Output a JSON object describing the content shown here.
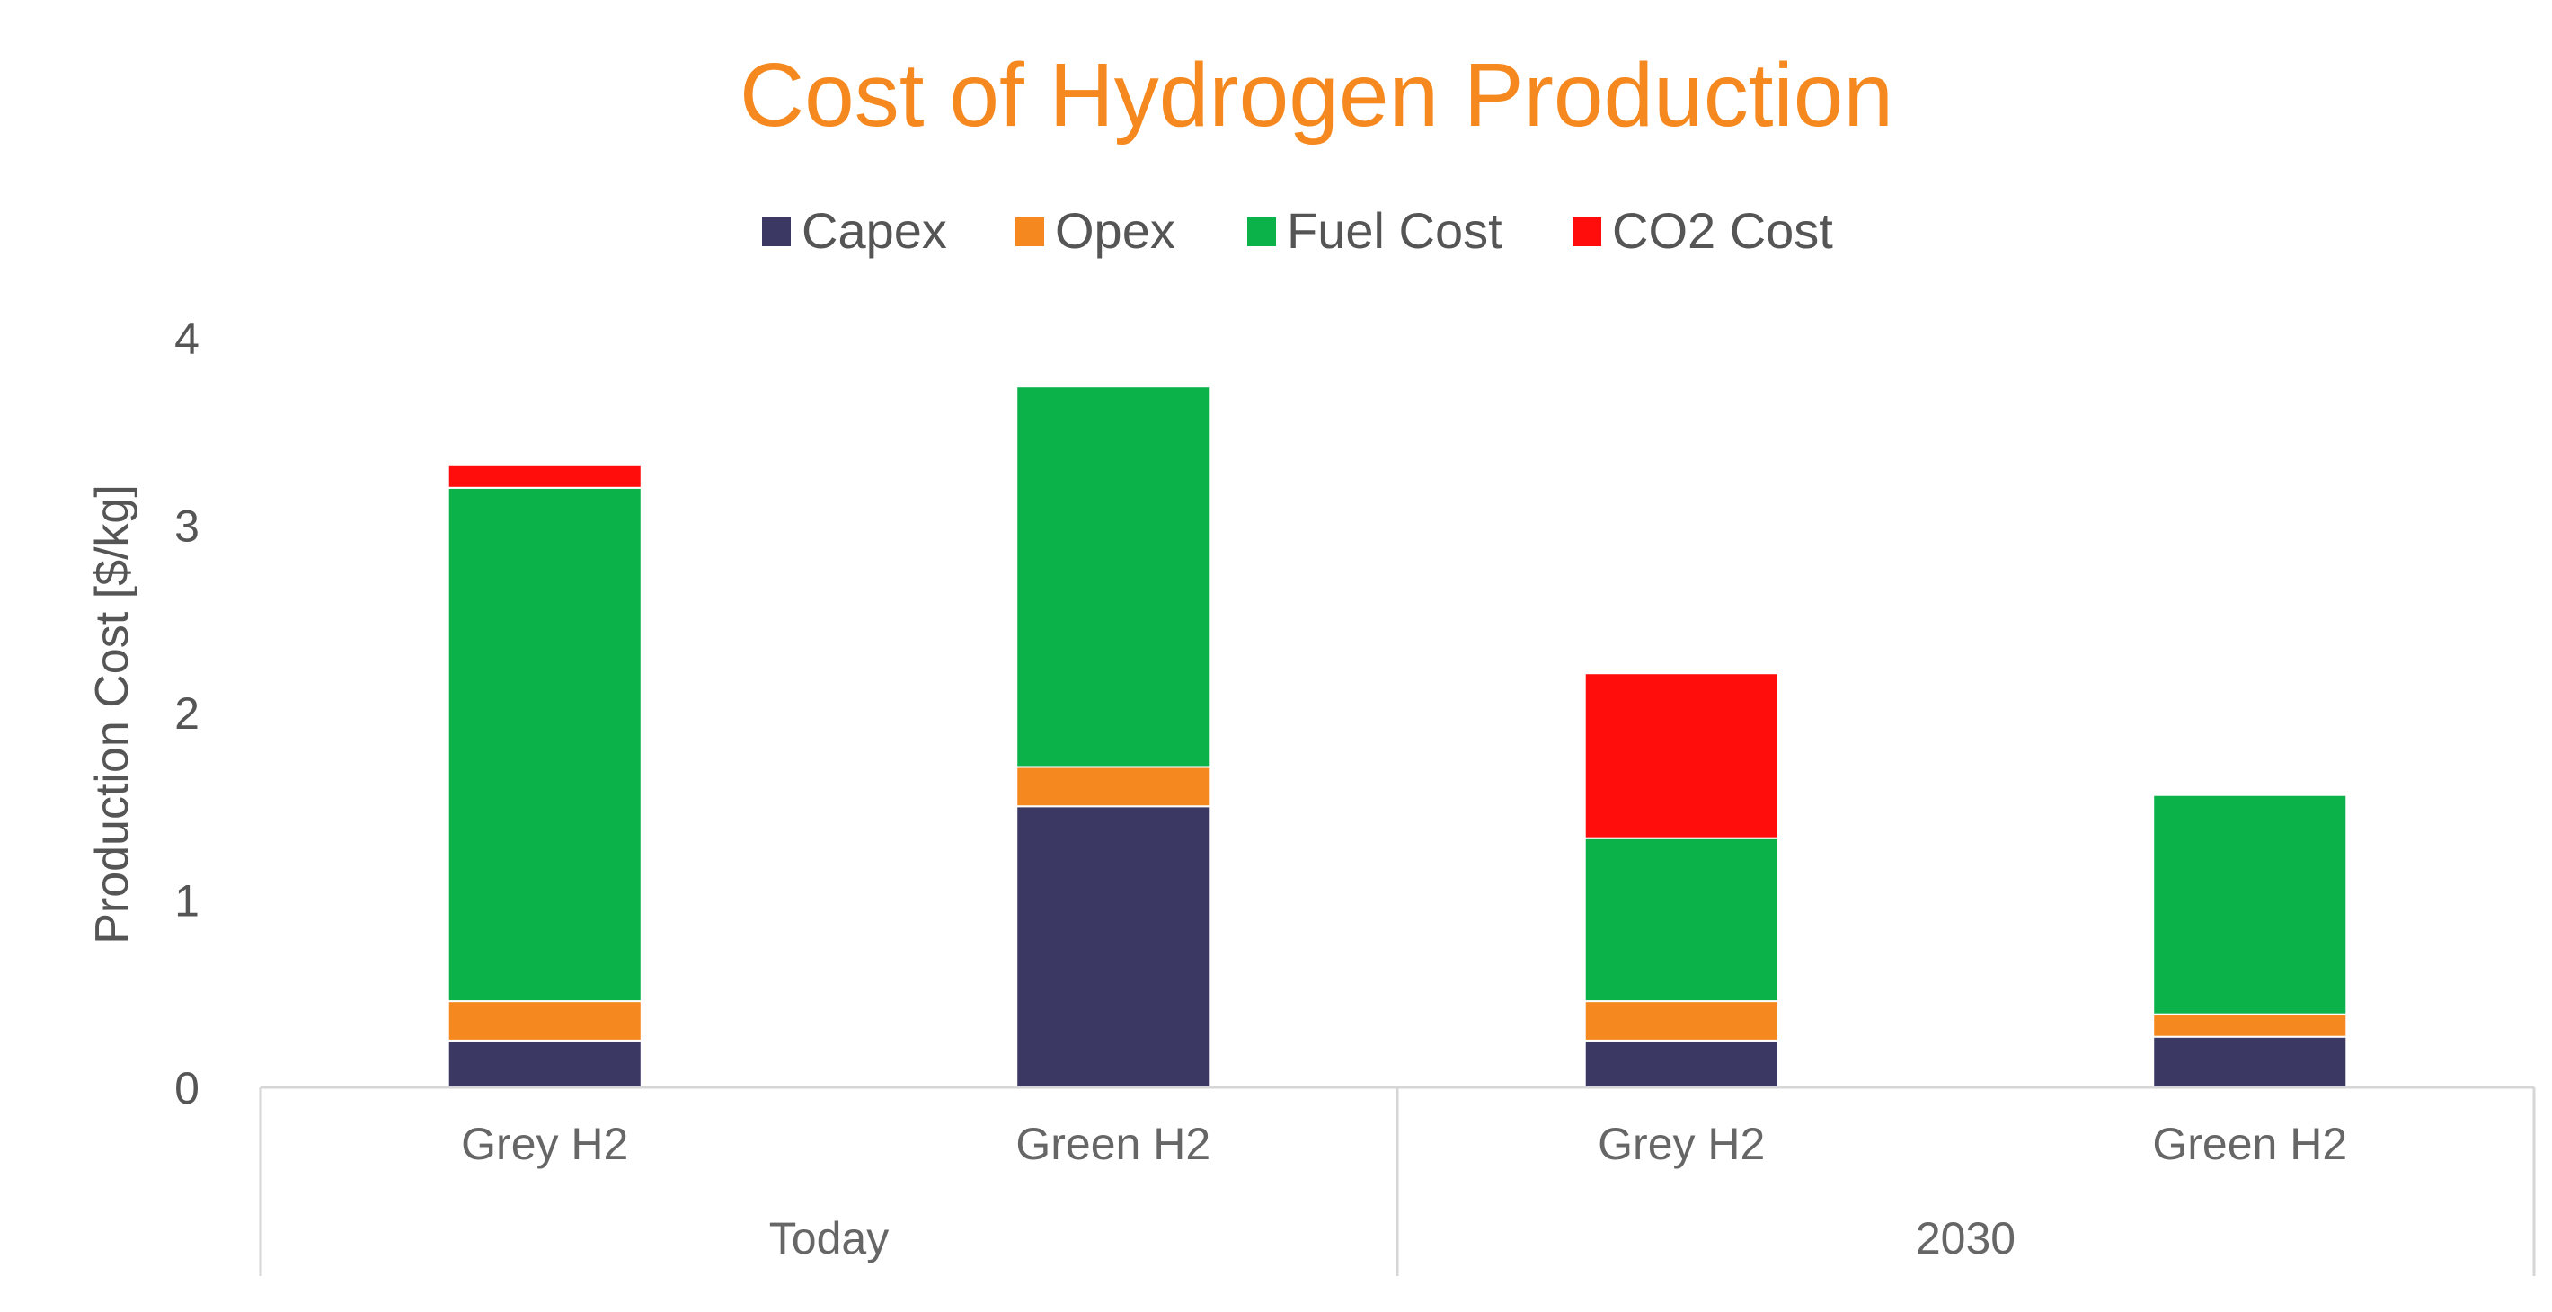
{
  "chart_data": {
    "type": "bar",
    "stacked": true,
    "title": "Cost of Hydrogen Production",
    "ylabel": "Production Cost [$/kg]",
    "xlabel": "",
    "ylim": [
      0,
      4
    ],
    "yticks": [
      0,
      1,
      2,
      3,
      4
    ],
    "categories": [
      "Grey H2",
      "Green H2",
      "Grey H2",
      "Green H2"
    ],
    "groups": [
      {
        "label": "Today",
        "count": 2
      },
      {
        "label": "2030",
        "count": 2
      }
    ],
    "legend_position": "top-center",
    "grid": false,
    "series": [
      {
        "name": "Capex",
        "color": "#3c3864",
        "values": [
          0.25,
          1.5,
          0.25,
          0.27
        ]
      },
      {
        "name": "Opex",
        "color": "#f5891f",
        "values": [
          0.21,
          0.21,
          0.21,
          0.12
        ]
      },
      {
        "name": "Fuel Cost",
        "color": "#0bb24a",
        "values": [
          2.74,
          2.03,
          0.87,
          1.17
        ]
      },
      {
        "name": "CO2 Cost",
        "color": "#ff0d0d",
        "values": [
          0.12,
          0,
          0.88,
          0
        ]
      }
    ]
  }
}
